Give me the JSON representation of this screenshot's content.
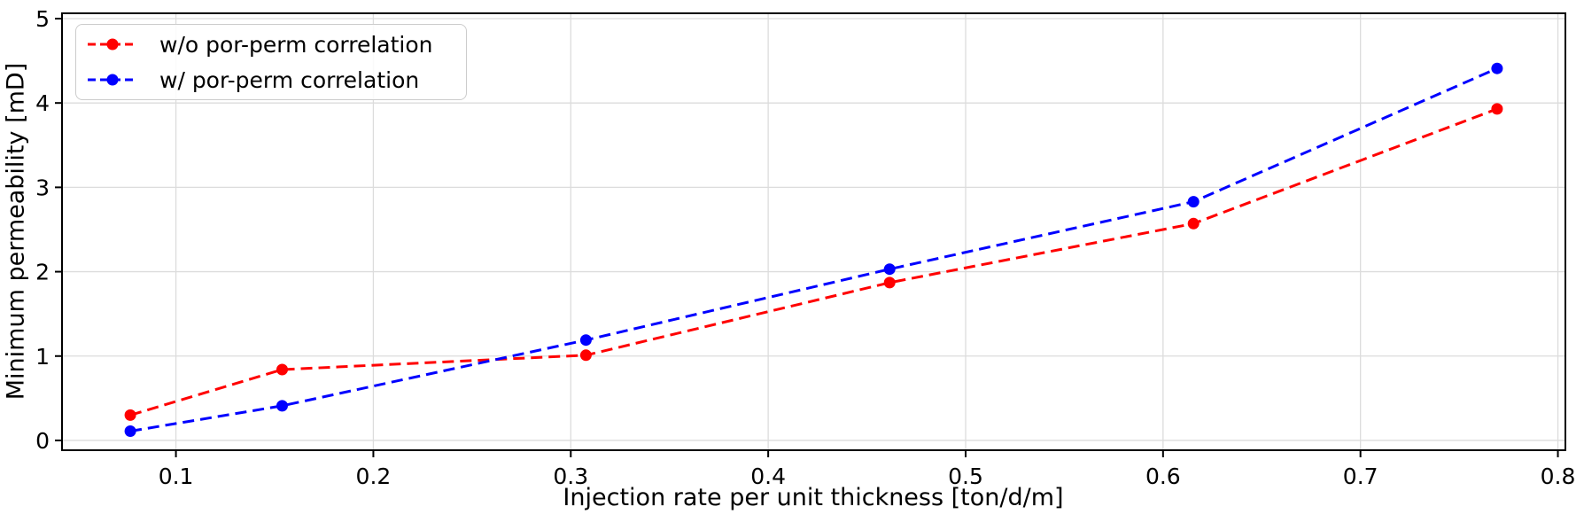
{
  "figure": {
    "background_color": "#ffffff",
    "text_color": "#000000"
  },
  "chart_data": {
    "type": "line",
    "title": "",
    "xlabel": "Injection rate per unit thickness [ton/d/m]",
    "ylabel": "Minimum permeability [mD]",
    "x": [
      0.0769,
      0.1538,
      0.3077,
      0.4615,
      0.6154,
      0.7692
    ],
    "series": [
      {
        "name": "w/o por-perm correlation",
        "color": "#ff0000",
        "linestyle": "dashed",
        "marker": "circle",
        "values": [
          0.3,
          0.84,
          1.01,
          1.87,
          2.57,
          3.93
        ]
      },
      {
        "name": "w/ por-perm correlation",
        "color": "#0000ff",
        "linestyle": "dashed",
        "marker": "circle",
        "values": [
          0.11,
          0.41,
          1.19,
          2.03,
          2.83,
          4.41
        ]
      }
    ],
    "xlim": [
      0.0423,
      0.8038
    ],
    "ylim": [
      -0.116,
      5.063
    ],
    "xticks": {
      "values": [
        0.1,
        0.2,
        0.3,
        0.4,
        0.5,
        0.6,
        0.7,
        0.8
      ],
      "labels": [
        "0.1",
        "0.2",
        "0.3",
        "0.4",
        "0.5",
        "0.6",
        "0.7",
        "0.8"
      ]
    },
    "yticks": {
      "values": [
        0,
        1,
        2,
        3,
        4,
        5
      ],
      "labels": [
        "0",
        "1",
        "2",
        "3",
        "4",
        "5"
      ]
    },
    "grid": true,
    "grid_color": "#dcdcdc",
    "spine_color": "#000000",
    "legend": {
      "position": "upper-left",
      "entries": [
        "w/o por-perm correlation",
        "w/ por-perm correlation"
      ]
    }
  }
}
